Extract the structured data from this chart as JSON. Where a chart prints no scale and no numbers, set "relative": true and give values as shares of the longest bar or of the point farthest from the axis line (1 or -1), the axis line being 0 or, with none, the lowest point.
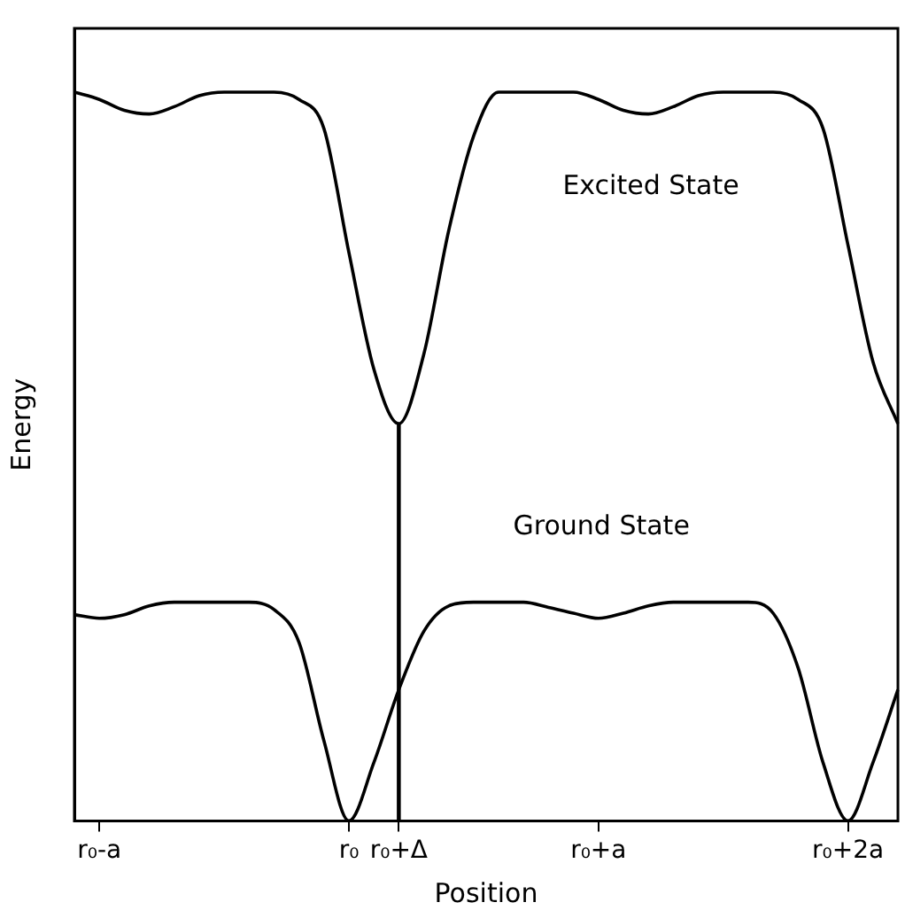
{
  "chart_data": {
    "type": "line",
    "relative": true,
    "xlabel": "Position",
    "ylabel": "Energy",
    "categories": [
      null,
      "r₀-a",
      null,
      null,
      null,
      null,
      null,
      null,
      null,
      null,
      null,
      "r₀",
      null,
      "r₀+Δ",
      null,
      null,
      null,
      null,
      null,
      null,
      null,
      "r₀+a",
      null,
      null,
      null,
      null,
      null,
      null,
      null,
      null,
      null,
      "r₀+2a",
      null,
      null
    ],
    "grid": false,
    "legend": false,
    "marker": "none",
    "line_style": "solid",
    "series": [
      {
        "name": "Excited State",
        "color": "#000000",
        "values": [
          1.0,
          0.99,
          0.975,
          0.97,
          0.98,
          0.995,
          1,
          1,
          1,
          0.99,
          0.95,
          0.78,
          0.62,
          0.545,
          0.64,
          0.81,
          0.94,
          1,
          1,
          1,
          1,
          0.99,
          0.975,
          0.97,
          0.98,
          0.995,
          1,
          1,
          1,
          0.99,
          0.95,
          0.79,
          0.63,
          0.545
        ]
      },
      {
        "name": "Ground State",
        "color": "#000000",
        "values": [
          0.283,
          0.278,
          0.283,
          0.295,
          0.3,
          0.3,
          0.3,
          0.3,
          0.29,
          0.245,
          0.11,
          0,
          0.08,
          0.18,
          0.26,
          0.295,
          0.3,
          0.3,
          0.3,
          0.293,
          0.285,
          0.278,
          0.285,
          0.295,
          0.3,
          0.3,
          0.3,
          0.3,
          0.285,
          0.21,
          0.08,
          0,
          0.08,
          0.18
        ]
      },
      {
        "type": "bar",
        "color": "#000000",
        "values": [
          null,
          null,
          null,
          null,
          null,
          null,
          null,
          null,
          null,
          null,
          null,
          null,
          null,
          0.545,
          null,
          null,
          null,
          null,
          null,
          null,
          null,
          null,
          null,
          null,
          null,
          null,
          null,
          null,
          null,
          null,
          null,
          null,
          null,
          null
        ]
      }
    ]
  }
}
